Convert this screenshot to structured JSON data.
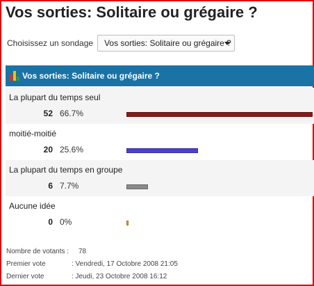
{
  "poll": {
    "title": "Vos sorties: Solitaire ou grégaire ?",
    "select_label": "Choisissez un sondage",
    "selected_poll": "Vos sorties: Solitaire ou grégaire ?",
    "header": "Vos sorties: Solitaire ou grégaire ?",
    "answers": [
      {
        "label": "La plupart du temps seul",
        "count": "52",
        "percent": "66.7%",
        "share": 0.667,
        "color": "#8b1a1a"
      },
      {
        "label": "moitié-moitié",
        "count": "20",
        "percent": "25.6%",
        "share": 0.256,
        "color": "#4b3fd6"
      },
      {
        "label": "La plupart du temps en groupe",
        "count": "6",
        "percent": "7.7%",
        "share": 0.077,
        "color": "#8a8a8a"
      },
      {
        "label": "Aucune idée",
        "count": "0",
        "percent": "0%",
        "share": 0.0,
        "color": "#e0a020"
      }
    ]
  },
  "stats": {
    "voters_label": "Nombre de votants :",
    "voters_value": "78",
    "first_label": "Premier vote",
    "first_value": ":  Vendredi, 17 Octobre 2008 21:05",
    "last_label": "Dernier vote",
    "last_value": ":  Jeudi, 23 Octobre 2008 16:12"
  },
  "colors": {
    "header_bg": "#1b72a5",
    "frame_border": "#e00000"
  },
  "icons": {
    "header_icon": "bar-chart-icon",
    "select_arrow": "chevron-down-icon"
  }
}
